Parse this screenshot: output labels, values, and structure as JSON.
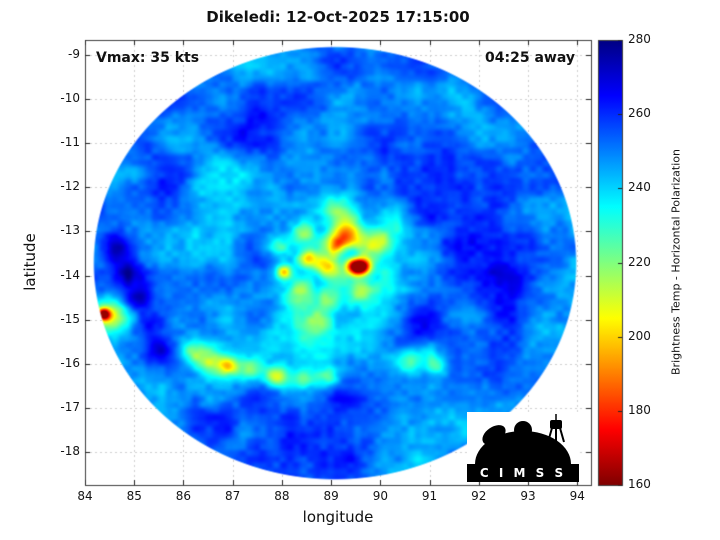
{
  "title": "Dikeledi: 12-Oct-2025 17:15:00",
  "annotations": {
    "vmax_label": "Vmax: 35 kts",
    "time_away_label": "04:25 away"
  },
  "axes": {
    "xlabel": "longitude",
    "ylabel": "latitude",
    "xticks": [
      84,
      85,
      86,
      87,
      88,
      89,
      90,
      91,
      92,
      93,
      94
    ],
    "yticks": [
      -9,
      -10,
      -11,
      -12,
      -13,
      -14,
      -15,
      -16,
      -17,
      -18
    ]
  },
  "colorbar": {
    "label": "Brightness Temp - Horizontal Polarization",
    "ticks": [
      160,
      180,
      200,
      220,
      240,
      260,
      280
    ],
    "min": 160,
    "max": 280
  },
  "logo": {
    "text": "C I M S S"
  },
  "chart_data": {
    "type": "heatmap",
    "title": "Dikeledi: 12-Oct-2025 17:15:00",
    "xlabel": "longitude",
    "ylabel": "latitude",
    "xlim": [
      84.0,
      94.28
    ],
    "ylim": [
      -18.75,
      -8.66
    ],
    "grid": true,
    "value_range": [
      160,
      280
    ],
    "colormap": "jet_reversed_low_red_high_blue",
    "colormap_stops": [
      [
        0.0,
        0,
        0,
        131
      ],
      [
        0.125,
        0,
        0,
        255
      ],
      [
        0.375,
        0,
        255,
        255
      ],
      [
        0.625,
        255,
        255,
        0
      ],
      [
        0.875,
        255,
        0,
        0
      ],
      [
        1.0,
        128,
        0,
        0
      ]
    ],
    "swath_disk": {
      "center_lon": 89.08,
      "center_lat": -13.72,
      "radius_deg": 4.88
    },
    "background_temp_k": 249,
    "noise": {
      "octaves": [
        {
          "freq": 1.2,
          "amp": 9
        },
        {
          "freq": 3.1,
          "amp": 4
        },
        {
          "freq": 7.3,
          "amp": 3
        }
      ]
    },
    "storm_center": {
      "lon": 89.2,
      "lat": -13.55
    },
    "spiral": {
      "arm_amp_k": 14,
      "twist": 1.8,
      "r_inner": 0.25,
      "r_fade": 2.2,
      "r_outer": 3.1,
      "ring": {
        "r": 0.45,
        "w": 0.2,
        "amp": 16
      }
    },
    "features_format": [
      "lon",
      "lat",
      "sigma_deg",
      "delta_k"
    ],
    "features": [
      [
        89.15,
        -13.32,
        0.18,
        -45
      ],
      [
        89.62,
        -13.8,
        0.13,
        -80
      ],
      [
        89.45,
        -13.78,
        0.12,
        -55
      ],
      [
        88.95,
        -13.75,
        0.2,
        -40
      ],
      [
        88.5,
        -13.62,
        0.14,
        -48
      ],
      [
        88.05,
        -13.92,
        0.12,
        -52
      ],
      [
        88.35,
        -14.35,
        0.22,
        -32
      ],
      [
        88.95,
        -14.55,
        0.2,
        -30
      ],
      [
        89.55,
        -14.35,
        0.18,
        -28
      ],
      [
        89.35,
        -12.95,
        0.22,
        -35
      ],
      [
        89.95,
        -13.25,
        0.2,
        -32
      ],
      [
        90.25,
        -12.7,
        0.28,
        -24
      ],
      [
        88.45,
        -13.05,
        0.2,
        -30
      ],
      [
        87.95,
        -13.35,
        0.18,
        -26
      ],
      [
        88.75,
        -15.05,
        0.22,
        -24
      ],
      [
        89.1,
        -12.55,
        0.25,
        -22
      ],
      [
        86.5,
        -15.95,
        0.2,
        -30
      ],
      [
        86.9,
        -16.05,
        0.15,
        -42
      ],
      [
        87.35,
        -16.15,
        0.18,
        -30
      ],
      [
        87.9,
        -16.3,
        0.17,
        -40
      ],
      [
        88.45,
        -16.35,
        0.18,
        -28
      ],
      [
        88.95,
        -16.3,
        0.16,
        -26
      ],
      [
        86.15,
        -15.7,
        0.18,
        -24
      ],
      [
        90.55,
        -15.95,
        0.22,
        -30
      ],
      [
        90.95,
        -15.75,
        0.25,
        -22
      ],
      [
        91.15,
        -16.05,
        0.18,
        -24
      ],
      [
        84.38,
        -14.88,
        0.09,
        -75
      ],
      [
        84.5,
        -14.92,
        0.25,
        -32
      ],
      [
        86.6,
        -11.8,
        0.5,
        -12
      ],
      [
        91.95,
        -12.2,
        0.75,
        14
      ],
      [
        92.55,
        -13.9,
        0.65,
        12
      ],
      [
        90.95,
        -15.35,
        0.55,
        12
      ],
      [
        85.55,
        -11.95,
        0.6,
        10
      ],
      [
        89.3,
        -17.55,
        0.8,
        10
      ],
      [
        91.3,
        -10.85,
        0.55,
        10
      ],
      [
        87.0,
        -10.55,
        0.7,
        8
      ],
      [
        90.1,
        -11.4,
        0.5,
        8
      ],
      [
        88.0,
        -17.8,
        0.6,
        8
      ],
      [
        86.2,
        -17.0,
        0.5,
        8
      ],
      [
        84.62,
        -13.35,
        0.22,
        24
      ],
      [
        84.85,
        -13.95,
        0.22,
        24
      ],
      [
        85.08,
        -14.55,
        0.22,
        24
      ],
      [
        85.3,
        -15.15,
        0.22,
        24
      ],
      [
        85.5,
        -15.7,
        0.2,
        20
      ]
    ]
  }
}
